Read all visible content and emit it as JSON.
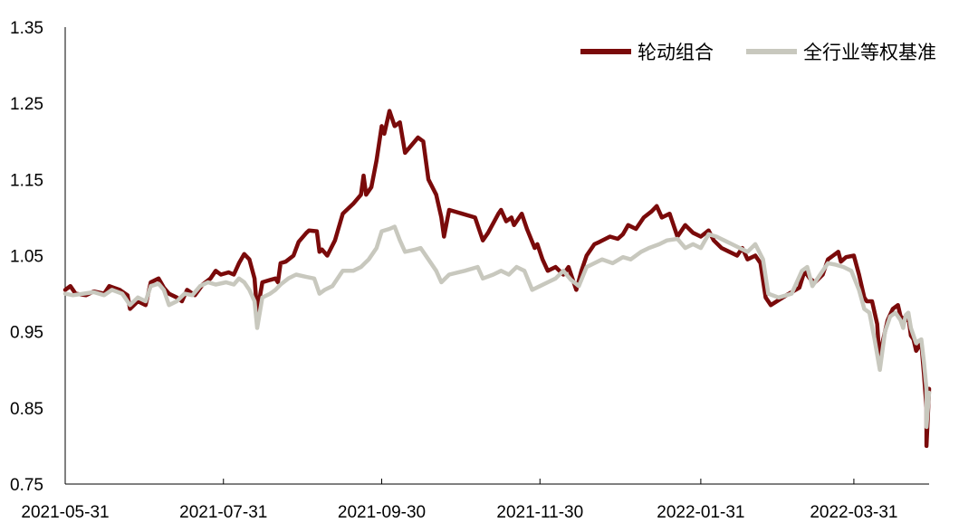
{
  "chart_data": {
    "type": "line",
    "title": "",
    "xlabel": "",
    "ylabel": "",
    "ylim": [
      0.75,
      1.35
    ],
    "yticks": [
      "1.35",
      "1.25",
      "1.15",
      "1.05",
      "0.95",
      "0.85",
      "0.75"
    ],
    "xticks": [
      "2021-05-31",
      "2021-07-31",
      "2021-09-30",
      "2021-11-30",
      "2022-01-31",
      "2022-03-31"
    ],
    "xlim": [
      "2021-05-31",
      "2022-04-29"
    ],
    "legend_position": "top-right",
    "grid": false,
    "series": [
      {
        "name": "轮动组合",
        "color": "#7a0a0a",
        "points": [
          [
            "2021-05-31",
            1.005
          ],
          [
            "2021-06-02",
            1.01
          ],
          [
            "2021-06-04",
            1.0
          ],
          [
            "2021-06-08",
            0.998
          ],
          [
            "2021-06-11",
            1.003
          ],
          [
            "2021-06-15",
            1.0
          ],
          [
            "2021-06-17",
            1.01
          ],
          [
            "2021-06-21",
            1.005
          ],
          [
            "2021-06-24",
            0.998
          ],
          [
            "2021-06-25",
            0.98
          ],
          [
            "2021-06-28",
            0.99
          ],
          [
            "2021-07-01",
            0.985
          ],
          [
            "2021-07-03",
            1.015
          ],
          [
            "2021-07-06",
            1.02
          ],
          [
            "2021-07-08",
            1.008
          ],
          [
            "2021-07-10",
            1.0
          ],
          [
            "2021-07-13",
            0.995
          ],
          [
            "2021-07-15",
            0.99
          ],
          [
            "2021-07-17",
            1.005
          ],
          [
            "2021-07-20",
            0.998
          ],
          [
            "2021-07-23",
            1.012
          ],
          [
            "2021-07-26",
            1.02
          ],
          [
            "2021-07-28",
            1.03
          ],
          [
            "2021-07-30",
            1.025
          ],
          [
            "2021-08-02",
            1.028
          ],
          [
            "2021-08-04",
            1.025
          ],
          [
            "2021-08-06",
            1.04
          ],
          [
            "2021-08-08",
            1.052
          ],
          [
            "2021-08-10",
            1.045
          ],
          [
            "2021-08-12",
            1.02
          ],
          [
            "2021-08-13",
            0.975
          ],
          [
            "2021-08-15",
            1.015
          ],
          [
            "2021-08-18",
            1.018
          ],
          [
            "2021-08-20",
            1.02
          ],
          [
            "2021-08-21",
            1.015
          ],
          [
            "2021-08-22",
            1.04
          ],
          [
            "2021-08-24",
            1.042
          ],
          [
            "2021-08-27",
            1.05
          ],
          [
            "2021-08-29",
            1.068
          ],
          [
            "2021-09-01",
            1.08
          ],
          [
            "2021-09-02",
            1.083
          ],
          [
            "2021-09-05",
            1.082
          ],
          [
            "2021-09-06",
            1.055
          ],
          [
            "2021-09-07",
            1.058
          ],
          [
            "2021-09-09",
            1.05
          ],
          [
            "2021-09-12",
            1.07
          ],
          [
            "2021-09-15",
            1.105
          ],
          [
            "2021-09-19",
            1.118
          ],
          [
            "2021-09-22",
            1.13
          ],
          [
            "2021-09-23",
            1.155
          ],
          [
            "2021-09-24",
            1.13
          ],
          [
            "2021-09-26",
            1.14
          ],
          [
            "2021-09-28",
            1.175
          ],
          [
            "2021-09-30",
            1.22
          ],
          [
            "2021-10-01",
            1.21
          ],
          [
            "2021-10-03",
            1.24
          ],
          [
            "2021-10-05",
            1.22
          ],
          [
            "2021-10-07",
            1.225
          ],
          [
            "2021-10-09",
            1.185
          ],
          [
            "2021-10-14",
            1.205
          ],
          [
            "2021-10-16",
            1.2
          ],
          [
            "2021-10-18",
            1.15
          ],
          [
            "2021-10-21",
            1.13
          ],
          [
            "2021-10-23",
            1.1
          ],
          [
            "2021-10-24",
            1.075
          ],
          [
            "2021-10-26",
            1.11
          ],
          [
            "2021-11-05",
            1.1
          ],
          [
            "2021-11-08",
            1.07
          ],
          [
            "2021-11-10",
            1.08
          ],
          [
            "2021-11-14",
            1.105
          ],
          [
            "2021-11-15",
            1.11
          ],
          [
            "2021-11-17",
            1.095
          ],
          [
            "2021-11-19",
            1.1
          ],
          [
            "2021-11-20",
            1.09
          ],
          [
            "2021-11-23",
            1.105
          ],
          [
            "2021-11-25",
            1.085
          ],
          [
            "2021-11-28",
            1.06
          ],
          [
            "2021-11-29",
            1.065
          ],
          [
            "2021-12-01",
            1.045
          ],
          [
            "2021-12-03",
            1.03
          ],
          [
            "2021-12-06",
            1.035
          ],
          [
            "2021-12-09",
            1.025
          ],
          [
            "2021-12-11",
            1.035
          ],
          [
            "2021-12-14",
            1.005
          ],
          [
            "2021-12-16",
            1.03
          ],
          [
            "2021-12-18",
            1.05
          ],
          [
            "2021-12-21",
            1.065
          ],
          [
            "2021-12-23",
            1.068
          ],
          [
            "2021-12-27",
            1.075
          ],
          [
            "2021-12-30",
            1.072
          ],
          [
            "2022-01-01",
            1.078
          ],
          [
            "2022-01-03",
            1.09
          ],
          [
            "2022-01-06",
            1.085
          ],
          [
            "2022-01-09",
            1.1
          ],
          [
            "2022-01-12",
            1.108
          ],
          [
            "2022-01-14",
            1.115
          ],
          [
            "2022-01-16",
            1.1
          ],
          [
            "2022-01-19",
            1.105
          ],
          [
            "2022-01-22",
            1.075
          ],
          [
            "2022-01-25",
            1.09
          ],
          [
            "2022-01-28",
            1.08
          ],
          [
            "2022-01-31",
            1.075
          ],
          [
            "2022-02-03",
            1.083
          ],
          [
            "2022-02-05",
            1.07
          ],
          [
            "2022-02-08",
            1.06
          ],
          [
            "2022-02-11",
            1.055
          ],
          [
            "2022-02-14",
            1.05
          ],
          [
            "2022-02-16",
            1.06
          ],
          [
            "2022-02-18",
            1.045
          ],
          [
            "2022-02-21",
            1.05
          ],
          [
            "2022-02-23",
            1.04
          ],
          [
            "2022-02-25",
            0.995
          ],
          [
            "2022-02-27",
            0.985
          ],
          [
            "2022-03-05",
            0.998
          ],
          [
            "2022-03-10",
            1.008
          ],
          [
            "2022-03-12",
            1.03
          ],
          [
            "2022-03-14",
            1.02
          ],
          [
            "2022-03-16",
            1.015
          ],
          [
            "2022-03-19",
            1.025
          ],
          [
            "2022-03-21",
            1.045
          ],
          [
            "2022-03-23",
            1.05
          ],
          [
            "2022-03-25",
            1.055
          ],
          [
            "2022-03-26",
            1.042
          ],
          [
            "2022-03-28",
            1.048
          ],
          [
            "2022-03-31",
            1.05
          ],
          [
            "2022-04-02",
            1.025
          ],
          [
            "2022-04-04",
            0.995
          ],
          [
            "2022-04-05",
            0.99
          ],
          [
            "2022-04-07",
            0.99
          ],
          [
            "2022-04-09",
            0.96
          ],
          [
            "2022-04-10",
            0.905
          ],
          [
            "2022-04-11",
            0.935
          ],
          [
            "2022-04-13",
            0.965
          ],
          [
            "2022-04-15",
            0.98
          ],
          [
            "2022-04-17",
            0.985
          ],
          [
            "2022-04-18",
            0.97
          ],
          [
            "2022-04-20",
            0.965
          ],
          [
            "2022-04-21",
            0.97
          ],
          [
            "2022-04-22",
            0.945
          ],
          [
            "2022-04-23",
            0.94
          ],
          [
            "2022-04-24",
            0.925
          ],
          [
            "2022-04-25",
            0.93
          ],
          [
            "2022-04-26",
            0.935
          ],
          [
            "2022-04-27",
            0.895
          ],
          [
            "2022-04-28",
            0.85
          ],
          [
            "2022-04-28",
            0.8
          ],
          [
            "2022-04-29",
            0.875
          ]
        ]
      },
      {
        "name": "全行业等权基准",
        "color": "#c8c8be",
        "points": [
          [
            "2021-05-31",
            1.0
          ],
          [
            "2021-06-03",
            0.998
          ],
          [
            "2021-06-07",
            1.0
          ],
          [
            "2021-06-11",
            1.002
          ],
          [
            "2021-06-15",
            0.998
          ],
          [
            "2021-06-18",
            1.005
          ],
          [
            "2021-06-22",
            1.0
          ],
          [
            "2021-06-25",
            0.985
          ],
          [
            "2021-06-28",
            0.995
          ],
          [
            "2021-07-01",
            0.99
          ],
          [
            "2021-07-03",
            1.01
          ],
          [
            "2021-07-06",
            1.013
          ],
          [
            "2021-07-08",
            1.005
          ],
          [
            "2021-07-10",
            0.985
          ],
          [
            "2021-07-13",
            0.99
          ],
          [
            "2021-07-16",
            1.0
          ],
          [
            "2021-07-19",
            0.998
          ],
          [
            "2021-07-22",
            1.01
          ],
          [
            "2021-07-25",
            1.015
          ],
          [
            "2021-07-28",
            1.012
          ],
          [
            "2021-08-01",
            1.015
          ],
          [
            "2021-08-04",
            1.012
          ],
          [
            "2021-08-06",
            1.02
          ],
          [
            "2021-08-08",
            1.015
          ],
          [
            "2021-08-10",
            1.005
          ],
          [
            "2021-08-12",
            0.99
          ],
          [
            "2021-08-13",
            0.955
          ],
          [
            "2021-08-15",
            0.995
          ],
          [
            "2021-08-18",
            1.0
          ],
          [
            "2021-08-20",
            1.005
          ],
          [
            "2021-08-22",
            1.012
          ],
          [
            "2021-08-25",
            1.02
          ],
          [
            "2021-08-28",
            1.025
          ],
          [
            "2021-09-01",
            1.022
          ],
          [
            "2021-09-04",
            1.02
          ],
          [
            "2021-09-06",
            1.0
          ],
          [
            "2021-09-08",
            1.005
          ],
          [
            "2021-09-11",
            1.01
          ],
          [
            "2021-09-15",
            1.03
          ],
          [
            "2021-09-19",
            1.03
          ],
          [
            "2021-09-22",
            1.035
          ],
          [
            "2021-09-25",
            1.045
          ],
          [
            "2021-09-28",
            1.06
          ],
          [
            "2021-09-30",
            1.082
          ],
          [
            "2021-10-03",
            1.085
          ],
          [
            "2021-10-05",
            1.088
          ],
          [
            "2021-10-07",
            1.07
          ],
          [
            "2021-10-09",
            1.055
          ],
          [
            "2021-10-13",
            1.058
          ],
          [
            "2021-10-15",
            1.06
          ],
          [
            "2021-10-18",
            1.045
          ],
          [
            "2021-10-21",
            1.03
          ],
          [
            "2021-10-23",
            1.015
          ],
          [
            "2021-10-26",
            1.025
          ],
          [
            "2021-11-01",
            1.03
          ],
          [
            "2021-11-06",
            1.035
          ],
          [
            "2021-11-08",
            1.02
          ],
          [
            "2021-11-12",
            1.025
          ],
          [
            "2021-11-15",
            1.03
          ],
          [
            "2021-11-18",
            1.025
          ],
          [
            "2021-11-21",
            1.035
          ],
          [
            "2021-11-24",
            1.03
          ],
          [
            "2021-11-27",
            1.005
          ],
          [
            "2021-11-30",
            1.01
          ],
          [
            "2021-12-03",
            1.015
          ],
          [
            "2021-12-06",
            1.02
          ],
          [
            "2021-12-09",
            1.03
          ],
          [
            "2021-12-12",
            1.018
          ],
          [
            "2021-12-15",
            1.01
          ],
          [
            "2021-12-18",
            1.035
          ],
          [
            "2021-12-21",
            1.04
          ],
          [
            "2021-12-24",
            1.045
          ],
          [
            "2021-12-28",
            1.04
          ],
          [
            "2022-01-01",
            1.048
          ],
          [
            "2022-01-04",
            1.045
          ],
          [
            "2022-01-08",
            1.055
          ],
          [
            "2022-01-11",
            1.06
          ],
          [
            "2022-01-15",
            1.065
          ],
          [
            "2022-01-18",
            1.07
          ],
          [
            "2022-01-22",
            1.072
          ],
          [
            "2022-01-25",
            1.06
          ],
          [
            "2022-01-28",
            1.065
          ],
          [
            "2022-01-31",
            1.06
          ],
          [
            "2022-02-03",
            1.078
          ],
          [
            "2022-02-06",
            1.075
          ],
          [
            "2022-02-09",
            1.07
          ],
          [
            "2022-02-12",
            1.065
          ],
          [
            "2022-02-15",
            1.06
          ],
          [
            "2022-02-18",
            1.055
          ],
          [
            "2022-02-21",
            1.065
          ],
          [
            "2022-02-24",
            1.045
          ],
          [
            "2022-02-26",
            1.0
          ],
          [
            "2022-03-02",
            0.995
          ],
          [
            "2022-03-07",
            1.0
          ],
          [
            "2022-03-11",
            1.03
          ],
          [
            "2022-03-13",
            1.035
          ],
          [
            "2022-03-15",
            1.01
          ],
          [
            "2022-03-18",
            1.025
          ],
          [
            "2022-03-21",
            1.04
          ],
          [
            "2022-03-24",
            1.038
          ],
          [
            "2022-03-27",
            1.035
          ],
          [
            "2022-03-30",
            1.03
          ],
          [
            "2022-04-02",
            1.005
          ],
          [
            "2022-04-04",
            0.98
          ],
          [
            "2022-04-06",
            0.975
          ],
          [
            "2022-04-08",
            0.94
          ],
          [
            "2022-04-10",
            0.9
          ],
          [
            "2022-04-12",
            0.95
          ],
          [
            "2022-04-14",
            0.97
          ],
          [
            "2022-04-16",
            0.975
          ],
          [
            "2022-04-18",
            0.965
          ],
          [
            "2022-04-19",
            0.955
          ],
          [
            "2022-04-20",
            0.972
          ],
          [
            "2022-04-21",
            0.975
          ],
          [
            "2022-04-22",
            0.955
          ],
          [
            "2022-04-23",
            0.945
          ],
          [
            "2022-04-24",
            0.935
          ],
          [
            "2022-04-25",
            0.938
          ],
          [
            "2022-04-26",
            0.94
          ],
          [
            "2022-04-27",
            0.91
          ],
          [
            "2022-04-28",
            0.875
          ],
          [
            "2022-04-28",
            0.825
          ],
          [
            "2022-04-29",
            0.87
          ]
        ]
      }
    ]
  }
}
